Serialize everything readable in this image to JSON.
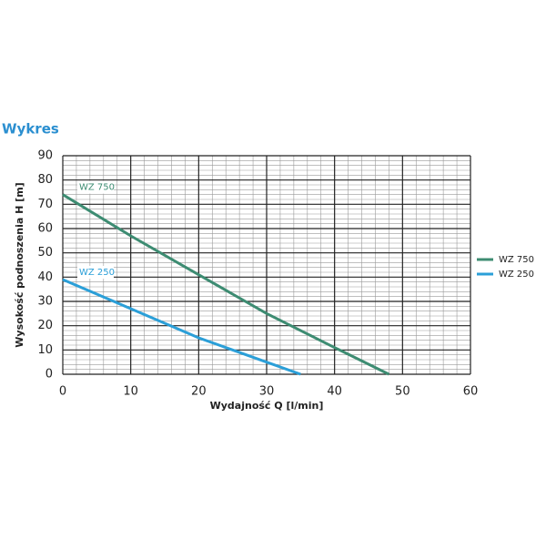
{
  "chart_data": {
    "type": "line",
    "title": "Wykres",
    "xlabel": "Wydajność Q [l/min]",
    "ylabel": "Wysokość podnoszenia H [m]",
    "xlim": [
      0,
      60
    ],
    "xticks": [
      0,
      10,
      20,
      30,
      40,
      50,
      60
    ],
    "ylim": [
      0,
      90
    ],
    "yticks": [
      0,
      10,
      20,
      30,
      40,
      50,
      60,
      70,
      80,
      90
    ],
    "grid": true,
    "minor_divisions": 5,
    "legend": "right",
    "series": [
      {
        "name": "WZ 750",
        "color": "#3d8c72",
        "x": [
          0,
          10,
          20,
          30,
          40,
          48
        ],
        "values": [
          74,
          57,
          41,
          25,
          11,
          0
        ]
      },
      {
        "name": "WZ 250",
        "color": "#2b9fd8",
        "x": [
          0,
          10,
          20,
          30,
          35
        ],
        "values": [
          39,
          27,
          15,
          5,
          0
        ]
      }
    ]
  }
}
